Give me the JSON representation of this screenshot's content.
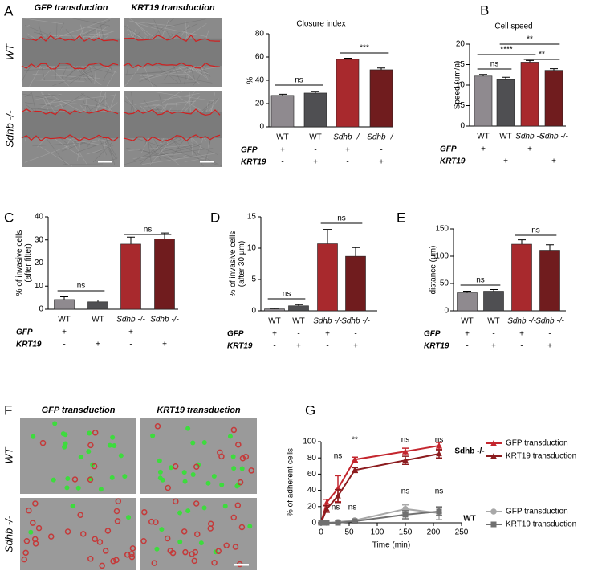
{
  "figure": {
    "panel_letters": [
      "A",
      "B",
      "C",
      "D",
      "E",
      "F",
      "G"
    ],
    "image_panels": [
      {
        "column_titles": [
          "GFP transduction",
          "KRT19 transduction"
        ],
        "row_labels": [
          "WT",
          "Sdhb -/-"
        ]
      },
      {
        "column_titles": [
          "GFP transduction",
          "KRT19 transduction"
        ],
        "row_labels": [
          "WT",
          "Sdhb -/-"
        ]
      }
    ]
  },
  "chart_data": [
    {
      "type": "bar",
      "title": "Closure index",
      "ylabel": [
        "%"
      ],
      "categories": [
        "WT",
        "WT",
        "Sdhb -/-",
        "Sdhb -/-"
      ],
      "values": [
        27,
        29,
        58,
        49
      ],
      "errors": [
        1,
        1.5,
        1,
        1.5
      ],
      "colors": [
        "#8f8a8f",
        "#4f4f52",
        "#a8292d",
        "#701c1e"
      ],
      "ylim": [
        0,
        80
      ],
      "yticks": [
        0,
        20,
        40,
        60,
        80
      ],
      "conditions": [
        {
          "name": "GFP",
          "signs": [
            "+",
            "-",
            "+",
            "-"
          ]
        },
        {
          "name": "KRT19",
          "signs": [
            "-",
            "+",
            "-",
            "+"
          ]
        }
      ],
      "annotations": [
        "ns",
        "***"
      ]
    },
    {
      "type": "bar",
      "title": "Cell speed",
      "ylabel": [
        "Speed (um/h)"
      ],
      "categories": [
        "WT",
        "WT",
        "Sdhb -/-",
        "Sdhb -/-"
      ],
      "values": [
        12.2,
        11.5,
        15.6,
        13.6
      ],
      "errors": [
        0.4,
        0.4,
        0.4,
        0.4
      ],
      "colors": [
        "#8f8a8f",
        "#4f4f52",
        "#a8292d",
        "#701c1e"
      ],
      "ylim": [
        0,
        20
      ],
      "yticks": [
        0,
        5,
        10,
        15,
        20
      ],
      "conditions": [
        {
          "name": "GFP",
          "signs": [
            "+",
            "-",
            "+",
            "-"
          ]
        },
        {
          "name": "KRT19",
          "signs": [
            "-",
            "+",
            "-",
            "+"
          ]
        }
      ],
      "annotations": [
        "ns",
        "****",
        "**",
        "**"
      ]
    },
    {
      "type": "bar",
      "ylabel": [
        "% of invasive cells",
        "(after filter)"
      ],
      "categories": [
        "WT",
        "WT",
        "Sdhb -/-",
        "Sdhb -/-"
      ],
      "values": [
        4.2,
        3.2,
        28.2,
        30.5
      ],
      "errors": [
        1.2,
        0.8,
        3,
        2.5
      ],
      "colors": [
        "#8f8a8f",
        "#4f4f52",
        "#a8292d",
        "#701c1e"
      ],
      "ylim": [
        0,
        40
      ],
      "yticks": [
        0,
        10,
        20,
        30,
        40
      ],
      "conditions": [
        {
          "name": "GFP",
          "signs": [
            "+",
            "-",
            "+",
            "-"
          ]
        },
        {
          "name": "KRT19",
          "signs": [
            "-",
            "+",
            "-",
            "+"
          ]
        }
      ],
      "annotations": [
        "ns",
        "ns"
      ]
    },
    {
      "type": "bar",
      "ylabel": [
        "% of invasive cells",
        "(after 30 µm)"
      ],
      "categories": [
        "WT",
        "WT",
        "Sdhb -/-",
        "Sdhb -/-"
      ],
      "values": [
        0.3,
        0.8,
        10.7,
        8.7
      ],
      "errors": [
        0.1,
        0.2,
        2.3,
        1.4
      ],
      "colors": [
        "#8f8a8f",
        "#4f4f52",
        "#a8292d",
        "#701c1e"
      ],
      "ylim": [
        0,
        15
      ],
      "yticks": [
        0,
        5,
        10,
        15
      ],
      "conditions": [
        {
          "name": "GFP",
          "signs": [
            "+",
            "-",
            "+",
            "-"
          ]
        },
        {
          "name": "KRT19",
          "signs": [
            "-",
            "+",
            "-",
            "+"
          ]
        }
      ],
      "annotations": [
        "ns",
        "ns"
      ]
    },
    {
      "type": "bar",
      "ylabel": [
        "distance (µm)"
      ],
      "categories": [
        "WT",
        "WT",
        "Sdhb -/-",
        "Sdhb -/-"
      ],
      "values": [
        33,
        36,
        122,
        111
      ],
      "errors": [
        3,
        3,
        8,
        10
      ],
      "colors": [
        "#8f8a8f",
        "#4f4f52",
        "#a8292d",
        "#701c1e"
      ],
      "ylim": [
        0,
        150
      ],
      "yticks": [
        0,
        50,
        100,
        150
      ],
      "conditions": [
        {
          "name": "GFP",
          "signs": [
            "+",
            "-",
            "+",
            "-"
          ]
        },
        {
          "name": "KRT19",
          "signs": [
            "-",
            "+",
            "-",
            "+"
          ]
        }
      ],
      "annotations": [
        "ns",
        "ns"
      ]
    },
    {
      "type": "line",
      "ylabel": "% of adherent cells",
      "xlabel": "Time (min)",
      "x": [
        0,
        10,
        30,
        60,
        150,
        210
      ],
      "xlim": [
        0,
        250
      ],
      "xticks": [
        0,
        50,
        100,
        150,
        200,
        250
      ],
      "ylim": [
        0,
        100
      ],
      "yticks": [
        0,
        20,
        40,
        60,
        80,
        100
      ],
      "legend_groups": [
        "Sdhb -/-",
        "WT"
      ],
      "series": [
        {
          "name": "GFP transduction",
          "color": "#c4262e",
          "marker": "triangle",
          "values": [
            0,
            25,
            42,
            78,
            88,
            95
          ],
          "errors": [
            0,
            4,
            16,
            3,
            4,
            4
          ]
        },
        {
          "name": "KRT19 transduction",
          "color": "#8c1c1f",
          "marker": "triangle",
          "values": [
            0,
            17,
            33,
            65,
            77,
            85
          ],
          "errors": [
            0,
            4,
            8,
            3,
            5,
            5
          ]
        },
        {
          "name": "GFP transduction",
          "color": "#a8a8a8",
          "marker": "circle",
          "values": [
            0,
            0,
            1,
            3,
            17,
            12
          ],
          "errors": [
            0,
            0,
            1,
            1,
            5,
            8
          ]
        },
        {
          "name": "KRT19 transduction",
          "color": "#707070",
          "marker": "square",
          "values": [
            0,
            0,
            0,
            2,
            10,
            14
          ],
          "errors": [
            0,
            0,
            0,
            1,
            5,
            5
          ]
        }
      ],
      "annotations": [
        "ns",
        "**",
        "ns",
        "ns",
        "ns",
        "ns",
        "ns",
        "ns"
      ]
    }
  ]
}
